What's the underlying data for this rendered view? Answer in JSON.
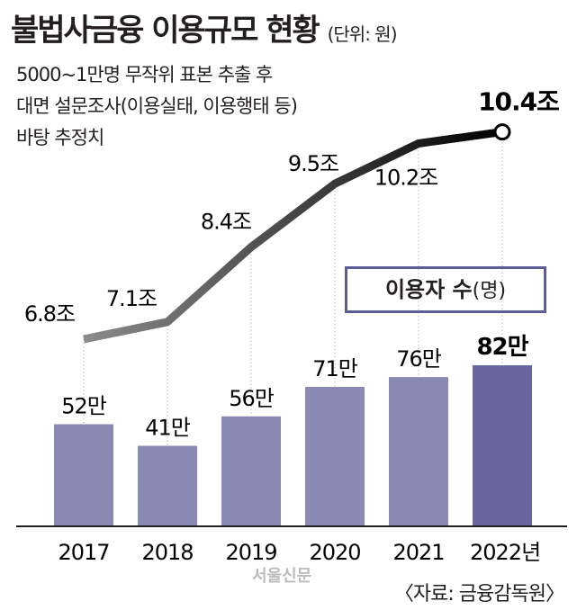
{
  "title": "불법사금융 이용규모 현황",
  "unit": "(단위: 원)",
  "subtitle_lines": [
    "5000~1만명 무작위 표본 추출 후",
    "대면 설문조사(이용실태, 이용행태 등)",
    "바탕 추정치"
  ],
  "legend": {
    "label": "이용자 수",
    "unit": "(명)"
  },
  "source": "〈자료: 금융감독원〉",
  "watermark": "서울신문",
  "colors": {
    "bar": "#8a89b4",
    "bar_highlight": "#67669f",
    "line_start": "#8c8c8c",
    "line_end": "#000000",
    "text": "#231f20"
  },
  "chart_data": {
    "type": "bar+line",
    "categories": [
      "2017",
      "2018",
      "2019",
      "2020",
      "2021",
      "2022년"
    ],
    "series": [
      {
        "name": "이용자 수",
        "type": "bar",
        "unit": "만 명",
        "values": [
          52,
          41,
          56,
          71,
          76,
          82
        ],
        "labels": [
          "52만",
          "41만",
          "56만",
          "71만",
          "76만",
          "82만"
        ]
      },
      {
        "name": "이용규모",
        "type": "line",
        "unit": "조 원",
        "values": [
          6.8,
          7.1,
          8.4,
          9.5,
          10.2,
          10.4
        ],
        "labels": [
          "6.8조",
          "7.1조",
          "8.4조",
          "9.5조",
          "10.2조",
          "10.4조"
        ]
      }
    ],
    "ylim_bar": [
      0,
      90
    ]
  }
}
